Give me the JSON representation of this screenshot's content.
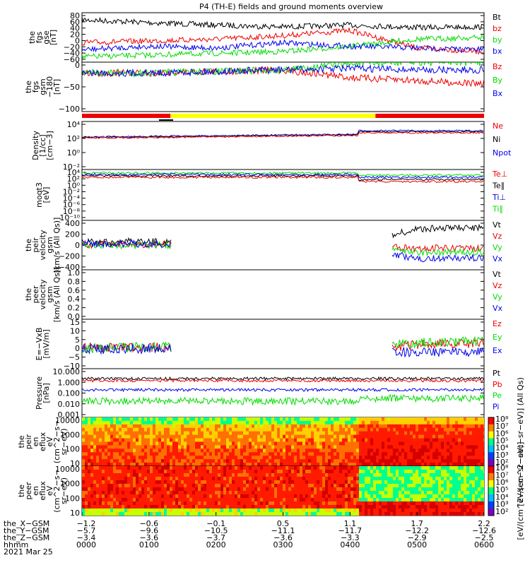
{
  "title": "P4 (TH-E) fields and ground moments overview",
  "colors": {
    "black": "#000000",
    "red": "#ee0000",
    "green": "#00dd00",
    "blue": "#0000ee",
    "yellow": "#ffff00",
    "panel_bg": "#ffffff"
  },
  "panels": [
    {
      "id": "fgs-gse",
      "ylabel": [
        "the",
        "fgs",
        "gse",
        "[nT]"
      ],
      "ticks": [
        "80",
        "60",
        "40",
        "20",
        "0",
        "−20",
        "−40",
        "−60"
      ],
      "ylim": [
        -60,
        80
      ],
      "legend": [
        {
          "text": "Bt",
          "color": "black"
        },
        {
          "text": "bz",
          "color": "red"
        },
        {
          "text": "by",
          "color": "green"
        },
        {
          "text": "bx",
          "color": "blue"
        }
      ]
    },
    {
      "id": "fgs-gsm",
      "ylabel": [
        "the",
        "fgs",
        "gsm",
        "−180",
        "[nT]"
      ],
      "ticks": [
        "0",
        "−50",
        "−100"
      ],
      "ylim": [
        -130,
        30
      ],
      "legend": [
        {
          "text": "Bz",
          "color": "red"
        },
        {
          "text": "By",
          "color": "green"
        },
        {
          "text": "Bx",
          "color": "blue"
        }
      ]
    },
    {
      "id": "density",
      "ylabel": [
        "Density",
        "[1/cc]",
        "[cm−3]"
      ],
      "ticks": [
        "10⁴",
        "10²",
        "10⁰",
        "10⁻²"
      ],
      "log": true,
      "legend": [
        {
          "text": "Ne",
          "color": "red"
        },
        {
          "text": "Ni",
          "color": "black"
        },
        {
          "text": "Npot",
          "color": "blue"
        }
      ]
    },
    {
      "id": "temperature",
      "ylabel": [
        "moqt3",
        "[eV]"
      ],
      "ticks": [
        "10⁴",
        "10²",
        "10⁰",
        "10⁻²",
        "10⁻⁴",
        "10⁻⁶",
        "10⁻⁸",
        "10⁻¹⁰"
      ],
      "log": true,
      "legend": [
        {
          "text": "Te⊥",
          "color": "red"
        },
        {
          "text": "Te∥",
          "color": "black"
        },
        {
          "text": "Ti⊥",
          "color": "blue"
        },
        {
          "text": "Ti∥",
          "color": "green"
        }
      ]
    },
    {
      "id": "peir-velocity",
      "ylabel": [
        "the",
        "peir",
        "velocity",
        "gsm",
        "[km/s (All Qs)]"
      ],
      "ticks": [
        "400",
        "200",
        "0",
        "−200",
        "−400"
      ],
      "ylim": [
        -400,
        400
      ],
      "legend": [
        {
          "text": "Vt",
          "color": "black"
        },
        {
          "text": "Vz",
          "color": "red"
        },
        {
          "text": "Vy",
          "color": "green"
        },
        {
          "text": "Vx",
          "color": "blue"
        }
      ]
    },
    {
      "id": "peer-velocity",
      "ylabel": [
        "the",
        "peer",
        "velocity",
        "gsm",
        "[km/s (All Qs)]"
      ],
      "ticks": [
        "1.0",
        "0.8",
        "0.6",
        "0.4",
        "0.2",
        "0.0"
      ],
      "ylim": [
        0,
        1
      ],
      "legend": [
        {
          "text": "Vt",
          "color": "black"
        },
        {
          "text": "Vz",
          "color": "red"
        },
        {
          "text": "Vy",
          "color": "green"
        },
        {
          "text": "Vx",
          "color": "blue"
        }
      ]
    },
    {
      "id": "efield",
      "ylabel": [
        "E=−VxB",
        "[mV/m]"
      ],
      "ticks": [
        "15",
        "10",
        "5",
        "0",
        "−5",
        "−10"
      ],
      "ylim": [
        -10,
        15
      ],
      "legend": [
        {
          "text": "Ez",
          "color": "red"
        },
        {
          "text": "Ey",
          "color": "green"
        },
        {
          "text": "Ex",
          "color": "blue"
        }
      ]
    },
    {
      "id": "pressure",
      "ylabel": [
        "Pressure",
        "[nPa]"
      ],
      "ticks": [
        "10.000",
        "1.000",
        "0.100",
        "0.010",
        "0.001"
      ],
      "log": true,
      "legend": [
        {
          "text": "Pt",
          "color": "black"
        },
        {
          "text": "Pb",
          "color": "red"
        },
        {
          "text": "Pe",
          "color": "green"
        },
        {
          "text": "Pi",
          "color": "blue"
        }
      ]
    },
    {
      "id": "peir-eflux",
      "ylabel": [
        "the",
        "peir",
        "en",
        "eflux",
        "eV",
        "(cm^2−s−",
        "sr−eV)"
      ],
      "ticks": [
        "10000",
        "1000",
        "100",
        "10"
      ],
      "spectrogram": true,
      "colorbar_ticks": [
        "10⁸",
        "10⁷",
        "10⁶",
        "10⁵",
        "10⁴",
        "10³",
        "10²"
      ],
      "colorbar_label": "[eV/(cm^2−sec−sr−eV)] (All Qs)"
    },
    {
      "id": "peer-eflux",
      "ylabel": [
        "the",
        "peer",
        "en",
        "eflux",
        "eV",
        "(cm^2−s−",
        "sr−eV)"
      ],
      "ticks": [
        "10000",
        "1000",
        "100",
        "10"
      ],
      "spectrogram": true,
      "colorbar_ticks": [
        "10⁸",
        "10⁷",
        "10⁶",
        "10⁵",
        "10⁴",
        "10³",
        "10²"
      ],
      "colorbar_label": "[eV/(cm^2−sec−sr−eV)]"
    }
  ],
  "mode_bar": [
    {
      "from": 0.0,
      "to": 0.22,
      "color": "red"
    },
    {
      "from": 0.22,
      "to": 0.73,
      "color": "yellow"
    },
    {
      "from": 0.73,
      "to": 1.0,
      "color": "red"
    }
  ],
  "x_axis": {
    "row_labels": [
      "the_X−GSM",
      "the_Y−GSM",
      "the_Z−GSM",
      "hhmm",
      "2021 Mar 25"
    ],
    "columns": [
      [
        "−1.2",
        "−5.7",
        "−3.4",
        "0000"
      ],
      [
        "−0.6",
        "−9.6",
        "−3.6",
        "0100"
      ],
      [
        "−0.1",
        "−10.5",
        "−3.7",
        "0200"
      ],
      [
        "0.5",
        "−11.1",
        "−3.6",
        "0300"
      ],
      [
        "1.1",
        "−11.7",
        "−3.3",
        "0400"
      ],
      [
        "1.7",
        "−12.2",
        "−2.9",
        "0500"
      ],
      [
        "2.2",
        "−12.6",
        "−2.5",
        "0600"
      ]
    ]
  },
  "chart_data": {
    "type": "line",
    "title": "P4 (TH-E) fields and ground moments overview",
    "x": [
      "0000",
      "0100",
      "0200",
      "0300",
      "0400",
      "0500",
      "0600"
    ],
    "xlabel": "hhmm",
    "date": "2021 Mar 25",
    "series": [
      {
        "name": "Bt",
        "panel": "fgs-gse",
        "values": [
          60,
          52,
          45,
          40,
          45,
          38,
          40
        ]
      },
      {
        "name": "bz",
        "panel": "fgs-gse",
        "values": [
          -5,
          0,
          5,
          15,
          30,
          -20,
          -30
        ]
      },
      {
        "name": "by",
        "panel": "fgs-gse",
        "values": [
          -45,
          -40,
          -35,
          -30,
          -15,
          5,
          10
        ]
      },
      {
        "name": "bx",
        "panel": "fgs-gse",
        "values": [
          -25,
          -15,
          -20,
          -5,
          -15,
          -20,
          -25
        ]
      },
      {
        "name": "Bz",
        "panel": "fgs-gsm",
        "values": [
          -5,
          -5,
          0,
          5,
          -20,
          -30,
          -40
        ]
      },
      {
        "name": "By",
        "panel": "fgs-gsm",
        "values": [
          -5,
          -5,
          0,
          5,
          25,
          30,
          30
        ]
      },
      {
        "name": "Bx",
        "panel": "fgs-gsm",
        "values": [
          -5,
          -5,
          0,
          5,
          10,
          5,
          5
        ]
      },
      {
        "name": "Vt",
        "panel": "peir-velocity",
        "values": [
          40,
          60,
          null,
          null,
          null,
          260,
          280
        ]
      },
      {
        "name": "Vz",
        "panel": "peir-velocity",
        "values": [
          10,
          10,
          null,
          null,
          null,
          -50,
          -60
        ]
      },
      {
        "name": "Vy",
        "panel": "peir-velocity",
        "values": [
          0,
          0,
          null,
          null,
          null,
          -120,
          -110
        ]
      },
      {
        "name": "Vx",
        "panel": "peir-velocity",
        "values": [
          20,
          20,
          null,
          null,
          null,
          -220,
          -200
        ]
      },
      {
        "name": "Ez",
        "panel": "efield",
        "values": [
          1,
          1,
          null,
          null,
          null,
          2,
          3
        ]
      },
      {
        "name": "Ey",
        "panel": "efield",
        "values": [
          0,
          1,
          null,
          null,
          null,
          3,
          4
        ]
      },
      {
        "name": "Ex",
        "panel": "efield",
        "values": [
          0,
          0,
          null,
          null,
          null,
          -2,
          -1
        ]
      }
    ]
  }
}
